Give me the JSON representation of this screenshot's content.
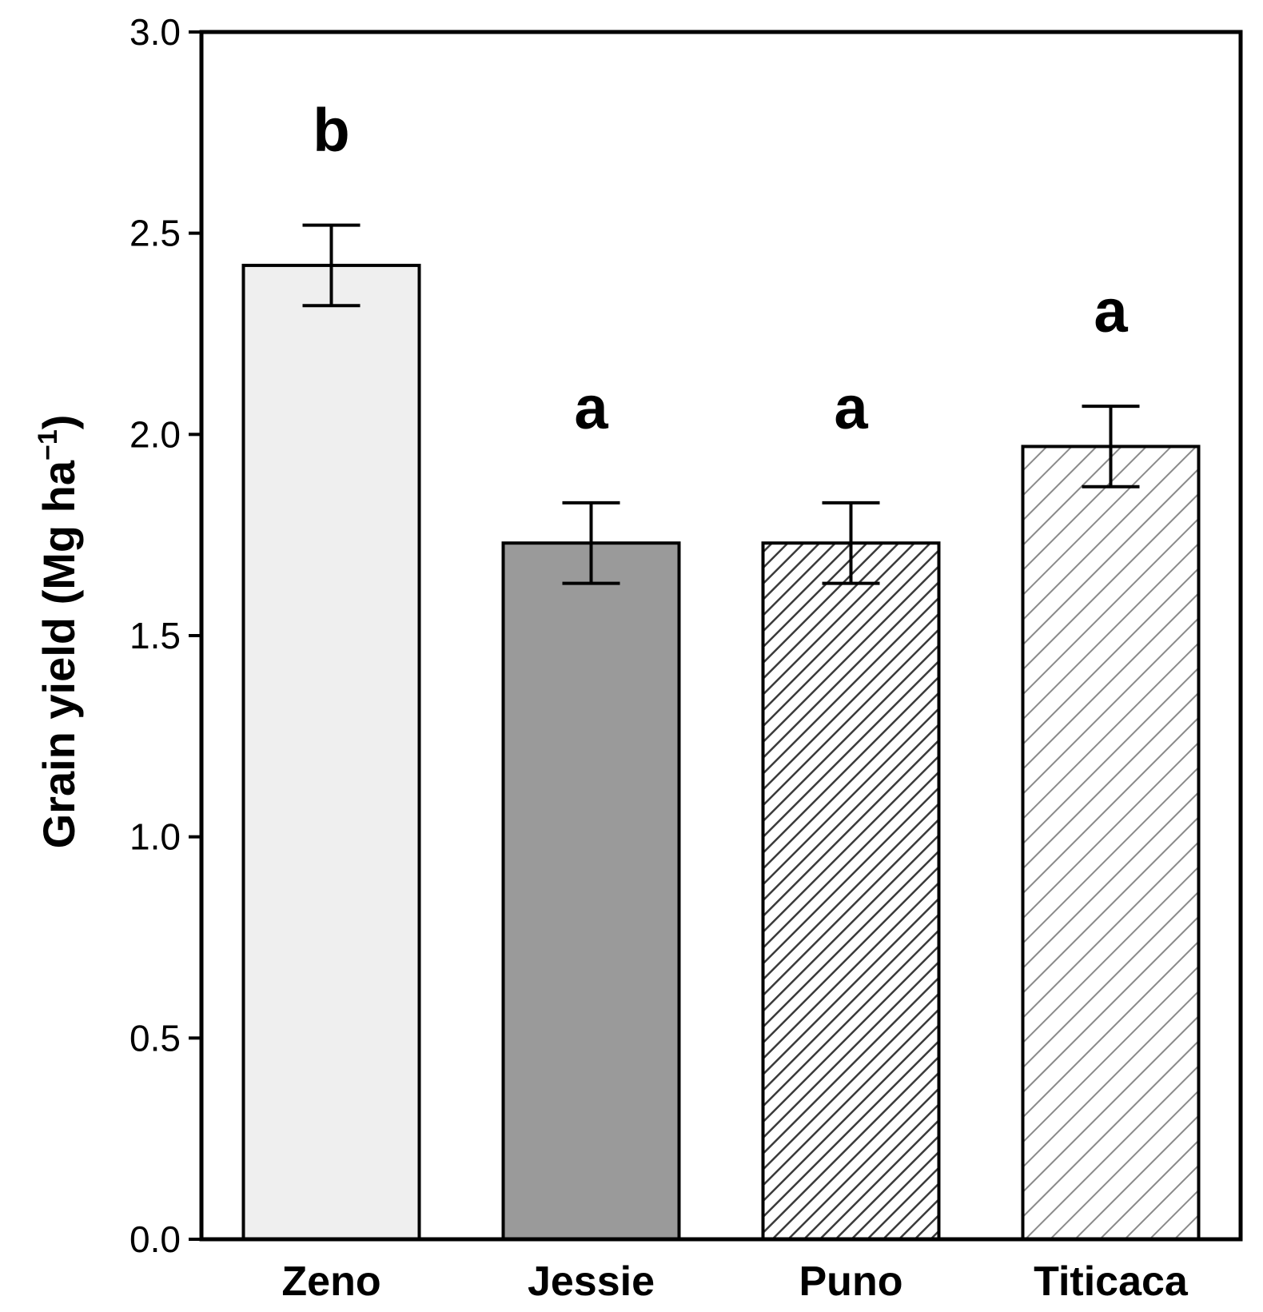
{
  "chart_data": {
    "type": "bar",
    "title": "",
    "xlabel": "",
    "ylabel": {
      "main": "Grain yield (Mg ha",
      "superscript": "−1",
      "close": ")"
    },
    "ylim": [
      0,
      3.0
    ],
    "yticks": [
      "0.0",
      "0.5",
      "1.0",
      "1.5",
      "2.0",
      "2.5",
      "3.0"
    ],
    "grid": false,
    "categories": [
      "Zeno",
      "Jessie",
      "Puno",
      "Titicaca"
    ],
    "values": [
      2.42,
      1.73,
      1.73,
      1.97
    ],
    "errors": [
      0.1,
      0.1,
      0.1,
      0.1
    ],
    "significance_letters": [
      "b",
      "a",
      "a",
      "a"
    ],
    "bar_styles": [
      {
        "fill": "#efefef",
        "pattern": "none"
      },
      {
        "fill": "#9a9a9a",
        "pattern": "none"
      },
      {
        "fill": "#ffffff",
        "pattern": "dense-diagonal",
        "line_color": "#3a3a3a"
      },
      {
        "fill": "#ffffff",
        "pattern": "sparse-diagonal",
        "line_color": "#8a8a8a"
      }
    ]
  }
}
